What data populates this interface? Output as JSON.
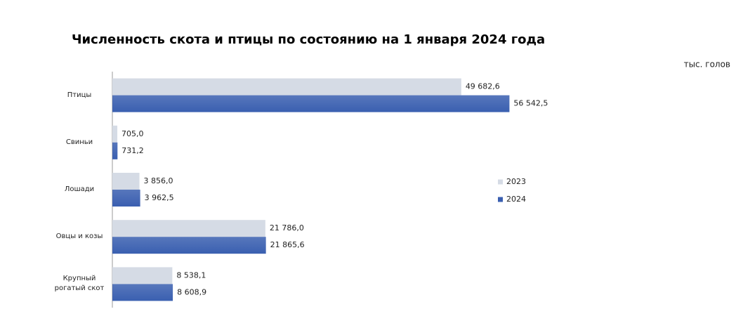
{
  "chart_data": {
    "type": "hbar",
    "title": "Численность скота и птицы по состоянию на 1 января 2024 года",
    "unit": "тыс. голов",
    "categories": [
      "Птицы",
      "Свиньи",
      "Лошади",
      "Овцы и козы",
      "Крупный рогатый скот"
    ],
    "series": [
      {
        "name": "2023",
        "color": "#d5dbe5",
        "values": [
          49682.6,
          705.0,
          3856.0,
          21786.0,
          8538.1
        ],
        "value_labels": [
          "49 682,6",
          "705,0",
          "3 856,0",
          "21 786,0",
          "8 538,1"
        ]
      },
      {
        "name": "2024",
        "color": "#3a5fb0",
        "values": [
          56542.5,
          731.2,
          3962.5,
          21865.6,
          8608.9
        ],
        "value_labels": [
          "56 542,5",
          "731,2",
          "3 962,5",
          "21 865,6",
          "8 608,9"
        ]
      }
    ],
    "xlim": [
      0,
      88000
    ],
    "legend": "right"
  }
}
